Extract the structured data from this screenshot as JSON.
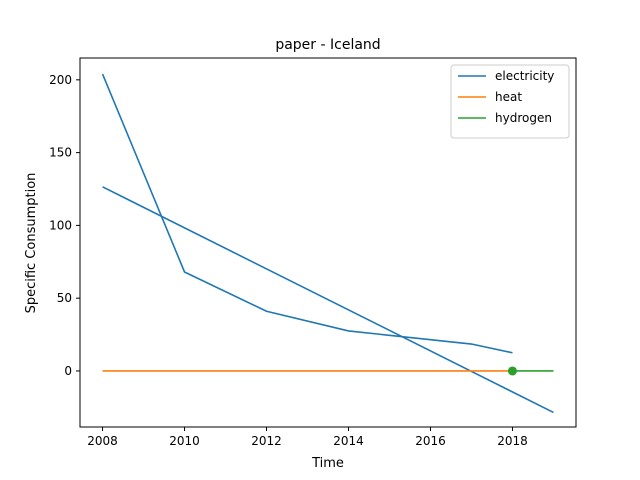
{
  "chart_data": {
    "type": "line",
    "title": "paper - Iceland",
    "xlabel": "Time",
    "ylabel": "Specific Consumption",
    "xlim": [
      2007.45,
      2019.55
    ],
    "ylim": [
      -38.5,
      215
    ],
    "xticks": [
      2008,
      2010,
      2012,
      2014,
      2016,
      2018
    ],
    "yticks": [
      0,
      50,
      100,
      150,
      200
    ],
    "grid": false,
    "legend_position": "top-right",
    "series": [
      {
        "name": "electricity",
        "color": "#1f77b4",
        "x": [
          2008,
          2010,
          2012,
          2014,
          2016,
          2017,
          2018
        ],
        "y": [
          204,
          68,
          41,
          27.5,
          21.5,
          18.5,
          12.5
        ]
      },
      {
        "name": "electricity",
        "color": "#1f77b4",
        "in_legend": false,
        "x": [
          2008,
          2019
        ],
        "y": [
          126.5,
          -28.5
        ]
      },
      {
        "name": "heat",
        "color": "#ff7f0e",
        "x": [
          2008,
          2018
        ],
        "y": [
          0,
          0
        ]
      },
      {
        "name": "hydrogen",
        "color": "#2ca02c",
        "x": [
          2018,
          2019
        ],
        "y": [
          0,
          0
        ],
        "markers": [
          {
            "x": 2018,
            "y": 0
          }
        ]
      }
    ]
  }
}
